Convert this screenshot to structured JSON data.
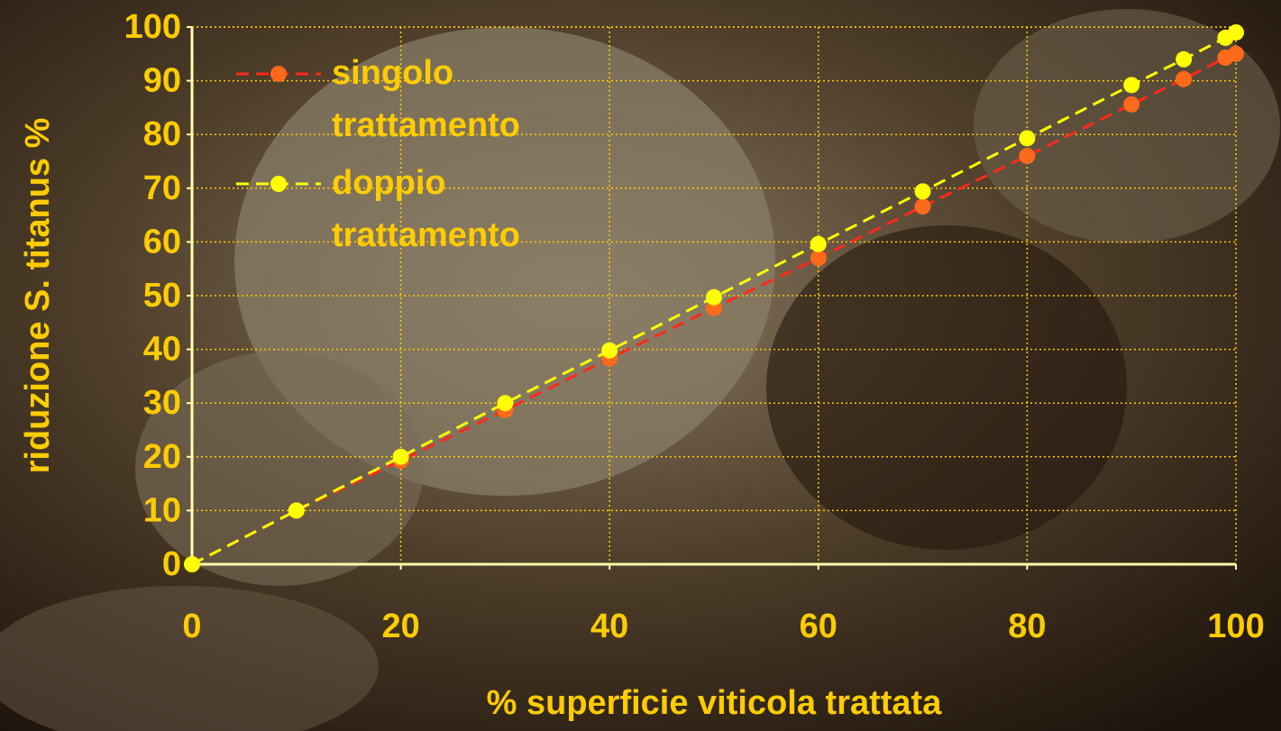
{
  "chart_data": {
    "type": "line",
    "x_label": "% superficie viticola trattata",
    "y_label": "riduzione S. titanus %",
    "xlim": [
      0,
      100
    ],
    "xticks": [
      0,
      20,
      40,
      60,
      80,
      100
    ],
    "ylim": [
      0,
      100
    ],
    "yticks": [
      0,
      10,
      20,
      30,
      40,
      50,
      60,
      70,
      80,
      90,
      100
    ],
    "grid": true,
    "legend": "upper left",
    "series": [
      {
        "name": "singolo trattamento",
        "color": "#ff6a1a",
        "line_color": "#ff2a1a",
        "x": [
          0,
          10,
          20,
          30,
          40,
          50,
          60,
          70,
          80,
          90,
          95,
          99,
          100
        ],
        "values": [
          0,
          10,
          19.3,
          28.7,
          38.3,
          47.7,
          57,
          66.6,
          76,
          85.6,
          90.3,
          94.3,
          95
        ]
      },
      {
        "name": "doppio trattamento",
        "color": "#ffff00",
        "line_color": "#ffff00",
        "x": [
          0,
          10,
          20,
          30,
          40,
          50,
          60,
          70,
          80,
          90,
          95,
          99,
          100
        ],
        "values": [
          0,
          10,
          20,
          30,
          39.8,
          49.7,
          59.6,
          69.4,
          79.3,
          89.2,
          94,
          98,
          99
        ]
      }
    ]
  }
}
